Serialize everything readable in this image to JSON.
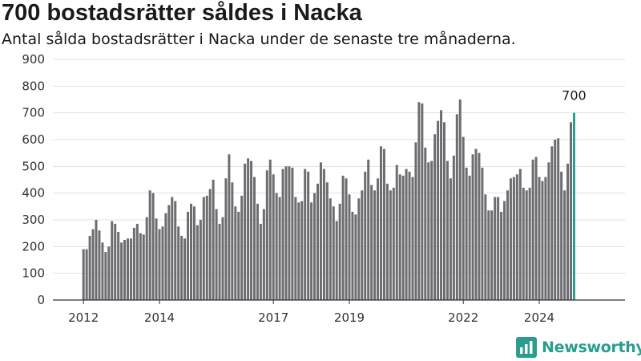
{
  "header": {
    "title": "700 bostadsrätter såldes i Nacka",
    "subtitle": "Antal sålda bostadsrätter i Nacka under de senaste tre månaderna."
  },
  "brand": {
    "name": "Newsworthy",
    "icon": "newsworthy-logo-icon",
    "color": "#2a9d8f"
  },
  "chart_data": {
    "type": "bar",
    "x_start": "2012-01",
    "x_end": "2024-09",
    "x_ticks": [
      "2012",
      "2014",
      "2017",
      "2019",
      "2022",
      "2024"
    ],
    "ylim": [
      0,
      900
    ],
    "y_ticks": [
      0,
      100,
      200,
      300,
      400,
      500,
      600,
      700,
      800,
      900
    ],
    "grid": true,
    "bar_color": "#6d6c70",
    "highlight_color": "#2a9d8f",
    "highlight_label": "700",
    "values": [
      190,
      190,
      240,
      265,
      300,
      260,
      215,
      180,
      200,
      295,
      285,
      255,
      215,
      225,
      230,
      230,
      270,
      285,
      250,
      245,
      310,
      410,
      400,
      305,
      265,
      275,
      325,
      355,
      385,
      370,
      275,
      240,
      230,
      330,
      360,
      350,
      280,
      300,
      385,
      390,
      415,
      450,
      340,
      285,
      310,
      455,
      545,
      440,
      350,
      330,
      390,
      510,
      530,
      520,
      460,
      360,
      285,
      340,
      485,
      525,
      470,
      400,
      385,
      490,
      500,
      500,
      495,
      385,
      365,
      370,
      490,
      480,
      365,
      400,
      435,
      515,
      490,
      440,
      380,
      350,
      295,
      360,
      465,
      455,
      395,
      330,
      320,
      380,
      410,
      480,
      525,
      430,
      410,
      455,
      575,
      565,
      435,
      410,
      420,
      505,
      470,
      465,
      490,
      480,
      460,
      590,
      740,
      735,
      570,
      515,
      520,
      620,
      670,
      710,
      665,
      520,
      455,
      540,
      695,
      750,
      610,
      495,
      465,
      545,
      565,
      550,
      495,
      395,
      335,
      335,
      385,
      385,
      330,
      370,
      410,
      455,
      460,
      470,
      490,
      420,
      410,
      420,
      525,
      535,
      460,
      445,
      460,
      515,
      575,
      600,
      605,
      480,
      410,
      510,
      665,
      700
    ]
  }
}
